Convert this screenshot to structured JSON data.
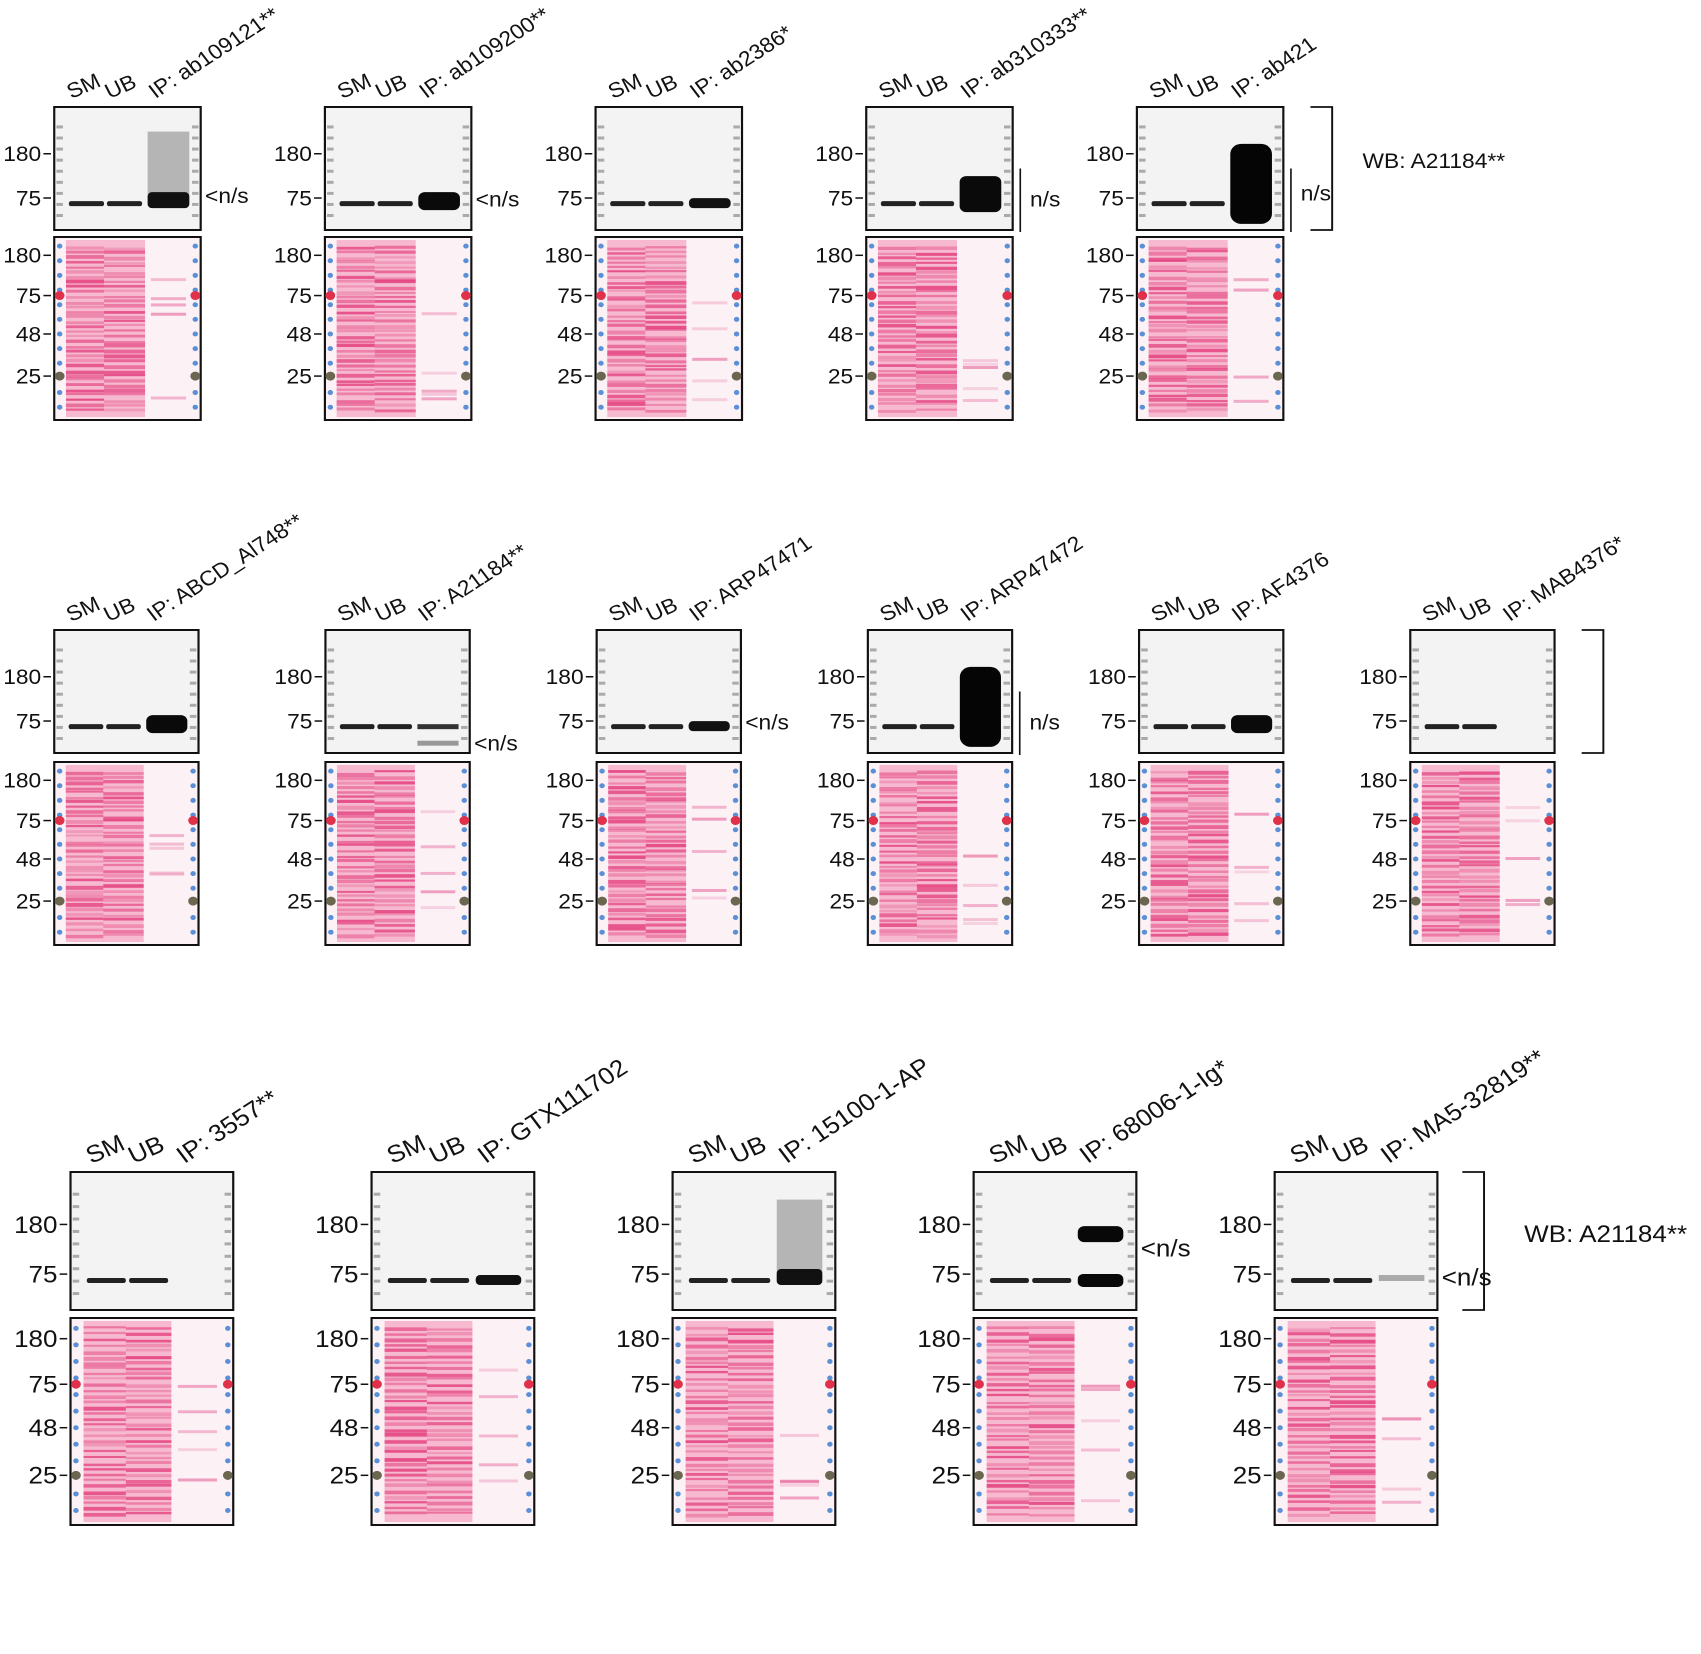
{
  "lanes": [
    "SM",
    "UB"
  ],
  "wb_markers": [
    "180",
    "75"
  ],
  "ponceau_markers": [
    "180",
    "75",
    "48",
    "25"
  ],
  "rows": [
    {
      "panels": [
        {
          "ip": "IP: ab109121**",
          "annotation": "<n/s"
        },
        {
          "ip": "IP: ab109200**",
          "annotation": "<n/s"
        },
        {
          "ip": "IP: ab2386*"
        },
        {
          "ip": "IP: ab310333**",
          "annotation": "n/s"
        },
        {
          "ip": "IP: ab421",
          "annotation": "n/s"
        }
      ],
      "wb": "WB: A21184**"
    },
    {
      "panels": [
        {
          "ip": "IP: ABCD_Al748**"
        },
        {
          "ip": "IP: A21184**",
          "annotation": "<n/s"
        },
        {
          "ip": "IP: ARP47471",
          "annotation": "<n/s"
        },
        {
          "ip": "IP: ARP47472",
          "annotation": "n/s"
        },
        {
          "ip": "IP: AF4376"
        },
        {
          "ip": "IP: MAB4376*"
        }
      ]
    },
    {
      "panels": [
        {
          "ip": "IP: 3557**"
        },
        {
          "ip": "IP: GTX111702"
        },
        {
          "ip": "IP: 15100-1-AP"
        },
        {
          "ip": "IP: 68006-1-Ig*",
          "annotation": "<n/s"
        },
        {
          "ip": "IP: MA5-32819**",
          "annotation": "<n/s"
        }
      ],
      "wb": "WB: A21184**"
    }
  ]
}
